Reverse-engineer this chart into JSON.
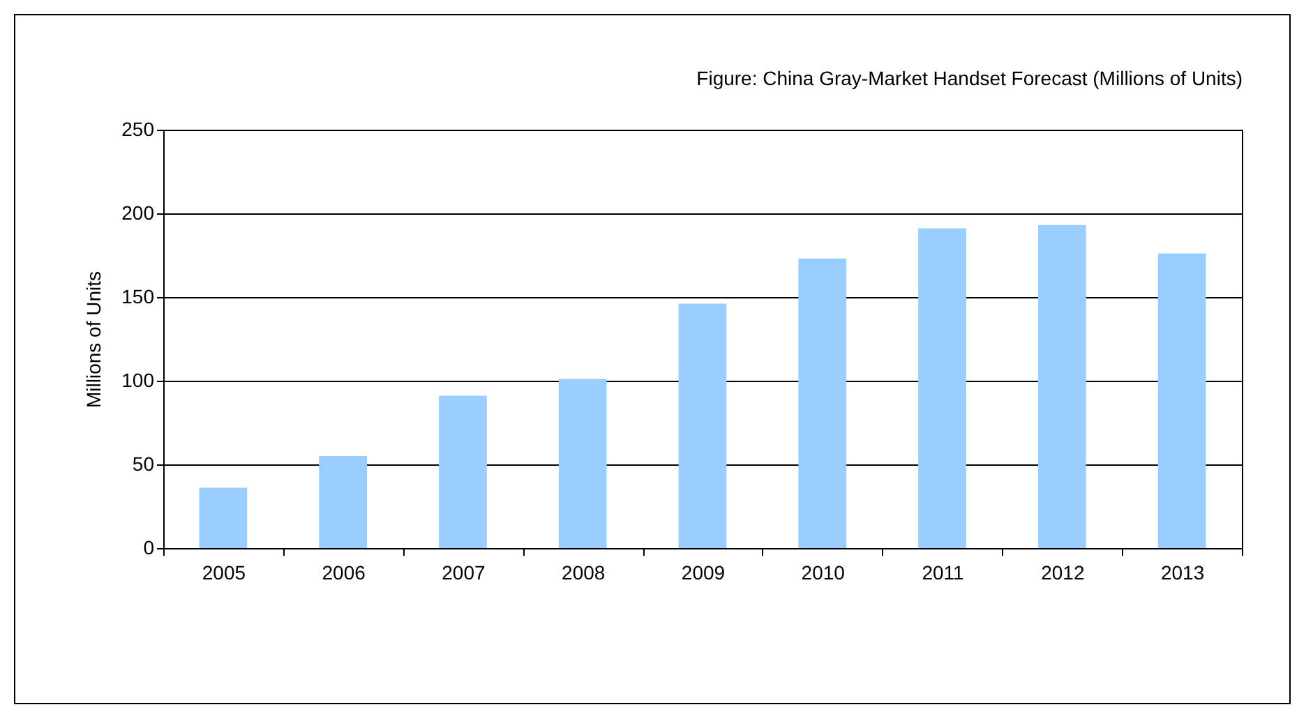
{
  "chart_data": {
    "type": "bar",
    "title": "Figure: China Gray-Market Handset Forecast (Millions of Units)",
    "ylabel": "Millions of Units",
    "categories": [
      "2005",
      "2006",
      "2007",
      "2008",
      "2009",
      "2010",
      "2011",
      "2012",
      "2013"
    ],
    "values": [
      36,
      55,
      91,
      101,
      146,
      173,
      191,
      193,
      176
    ],
    "color": "#99ccff",
    "ylim": [
      0,
      250
    ],
    "yticks": [
      0,
      50,
      100,
      150,
      200,
      250
    ],
    "grid": "y"
  }
}
